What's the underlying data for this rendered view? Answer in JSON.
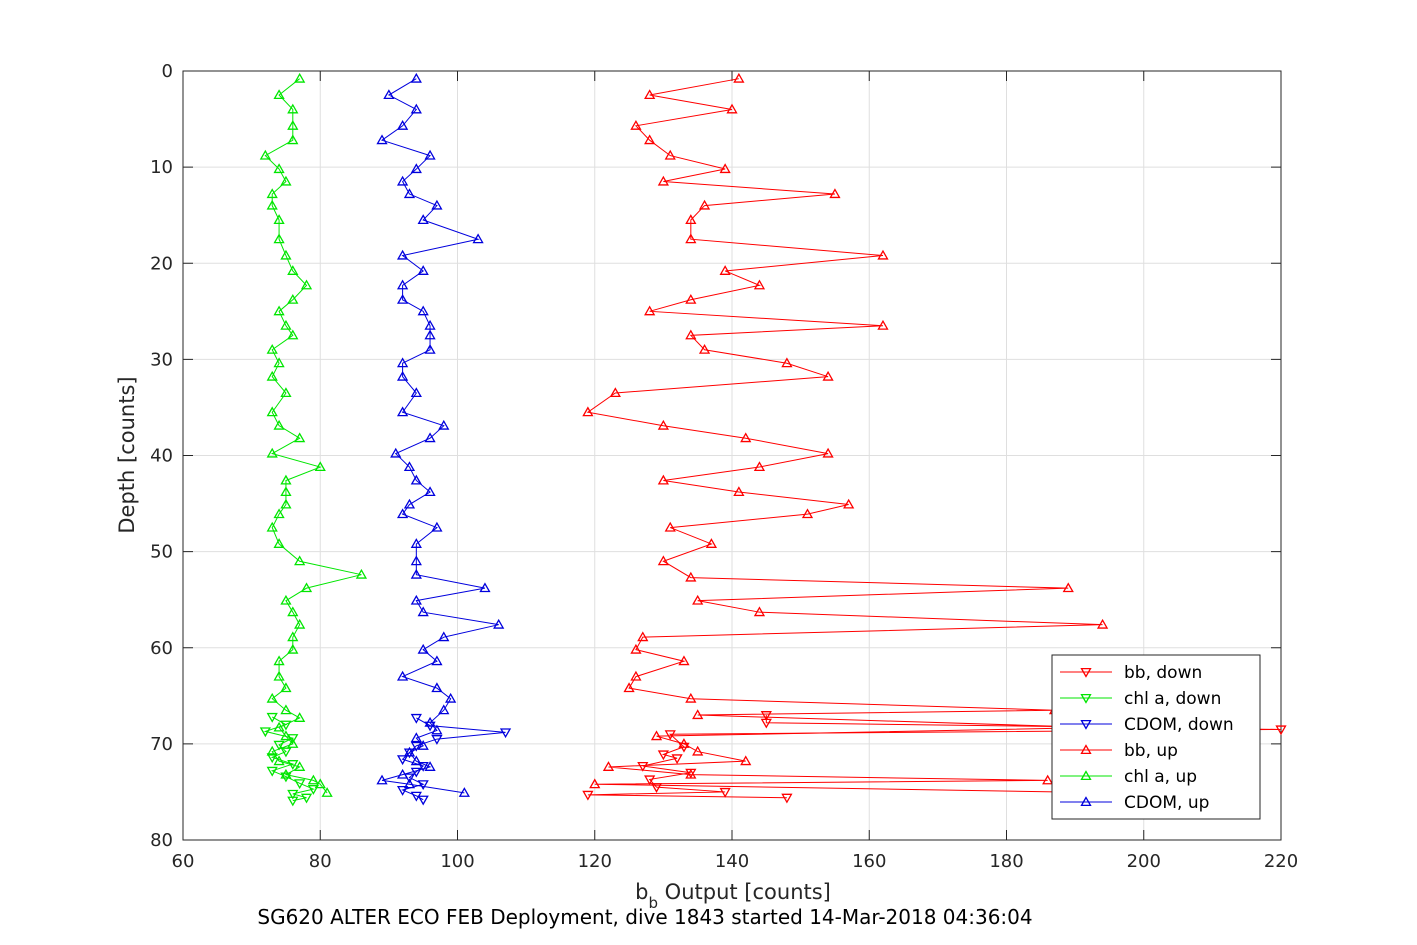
{
  "chart_data": {
    "type": "line",
    "xlabel_main": "b",
    "xlabel_sub": "b",
    "xlabel_rest": " Output [counts]",
    "ylabel": "Depth [counts]",
    "caption": "SG620 ALTER ECO FEB Deployment, dive 1843 started 14-Mar-2018 04:36:04",
    "xlim": [
      60,
      220
    ],
    "ylim": [
      0,
      80
    ],
    "y_reversed": true,
    "grid": true,
    "legend_position": "bottom-right",
    "xticks": [
      60,
      80,
      100,
      120,
      140,
      160,
      180,
      200,
      220
    ],
    "yticks": [
      0,
      10,
      20,
      30,
      40,
      50,
      60,
      70,
      80
    ],
    "series": [
      {
        "name": "bb, down",
        "color": "#ff0000",
        "marker": "triangle-down",
        "depth": [
          67.0,
          67.8,
          68.5,
          69.0,
          70.3,
          71.1,
          71.5,
          72.3,
          73.0,
          73.7,
          74.5,
          75.0,
          75.3,
          75.6
        ],
        "values": [
          145,
          145,
          220,
          131,
          133,
          130,
          132,
          127,
          134,
          128,
          129,
          139,
          119,
          148
        ]
      },
      {
        "name": "chl a, down",
        "color": "#00e600",
        "marker": "triangle-down",
        "depth": [
          67.2,
          68.0,
          68.7,
          69.4,
          70.1,
          70.8,
          71.4,
          72.1,
          72.8,
          73.4,
          74.1,
          74.7,
          75.2,
          75.6,
          75.9
        ],
        "values": [
          73,
          75,
          72,
          76,
          74,
          75,
          73,
          76,
          73,
          75,
          77,
          79,
          76,
          78,
          76
        ]
      },
      {
        "name": "CDOM, down",
        "color": "#0000dd",
        "marker": "triangle-down",
        "depth": [
          67.3,
          68.1,
          68.8,
          69.5,
          70.2,
          70.9,
          71.6,
          72.3,
          72.9,
          73.5,
          74.2,
          74.8,
          75.4,
          75.8
        ],
        "values": [
          94,
          96,
          107,
          97,
          94,
          93,
          92,
          95,
          94,
          93,
          95,
          92,
          94,
          95
        ]
      },
      {
        "name": "bb, up",
        "color": "#ff0000",
        "marker": "triangle-up",
        "depth": [
          0.8,
          2.5,
          4.0,
          5.7,
          7.2,
          8.8,
          10.2,
          11.5,
          12.8,
          14.0,
          15.5,
          17.5,
          19.2,
          20.8,
          22.3,
          23.8,
          25.0,
          26.5,
          27.5,
          29.0,
          30.4,
          31.8,
          33.5,
          35.5,
          36.9,
          38.2,
          39.8,
          41.2,
          42.6,
          43.8,
          45.1,
          46.1,
          47.5,
          49.2,
          51.0,
          52.7,
          53.8,
          55.1,
          56.3,
          57.6,
          58.9,
          60.2,
          61.4,
          63.0,
          64.2,
          65.3,
          66.5,
          67.0,
          68.3,
          69.2,
          70.0,
          70.8,
          71.8,
          72.4,
          73.2,
          73.8,
          74.2,
          75.1
        ],
        "values": [
          141,
          128,
          140,
          126,
          128,
          131,
          139,
          130,
          155,
          136,
          134,
          134,
          162,
          139,
          144,
          134,
          128,
          162,
          134,
          136,
          148,
          154,
          123,
          119,
          130,
          142,
          154,
          144,
          130,
          141,
          157,
          151,
          131,
          137,
          130,
          134,
          189,
          135,
          144,
          194,
          127,
          126,
          133,
          126,
          125,
          134,
          187,
          135,
          193,
          129,
          133,
          135,
          142,
          122,
          134,
          186,
          120,
          196
        ]
      },
      {
        "name": "chl a, up",
        "color": "#00e600",
        "marker": "triangle-up",
        "depth": [
          0.8,
          2.5,
          4.0,
          5.7,
          7.2,
          8.8,
          10.2,
          11.5,
          12.8,
          14.0,
          15.5,
          17.5,
          19.2,
          20.8,
          22.3,
          23.8,
          25.0,
          26.5,
          27.5,
          29.0,
          30.4,
          31.8,
          33.5,
          35.5,
          36.9,
          38.2,
          39.8,
          41.2,
          42.6,
          43.8,
          45.1,
          46.1,
          47.5,
          49.2,
          51.0,
          52.4,
          53.8,
          55.1,
          56.3,
          57.6,
          58.9,
          60.2,
          61.4,
          63.0,
          64.2,
          65.3,
          66.5,
          67.3,
          68.3,
          69.2,
          70.0,
          70.8,
          71.8,
          72.4,
          73.2,
          73.8,
          74.2,
          75.1
        ],
        "values": [
          77,
          74,
          76,
          76,
          76,
          72,
          74,
          75,
          73,
          73,
          74,
          74,
          75,
          76,
          78,
          76,
          74,
          75,
          76,
          73,
          74,
          73,
          75,
          73,
          74,
          77,
          73,
          80,
          75,
          75,
          75,
          74,
          73,
          74,
          77,
          86,
          78,
          75,
          76,
          77,
          76,
          76,
          74,
          74,
          75,
          73,
          75,
          77,
          74,
          75,
          76,
          73,
          74,
          77,
          75,
          79,
          80,
          81
        ]
      },
      {
        "name": "CDOM, up",
        "color": "#0000dd",
        "marker": "triangle-up",
        "depth": [
          0.8,
          2.5,
          4.0,
          5.7,
          7.2,
          8.8,
          10.2,
          11.5,
          12.8,
          14.0,
          15.5,
          17.5,
          19.2,
          20.8,
          22.3,
          23.8,
          25.0,
          26.5,
          27.5,
          29.0,
          30.4,
          31.8,
          33.5,
          35.5,
          36.9,
          38.2,
          39.8,
          41.2,
          42.6,
          43.8,
          45.1,
          46.1,
          47.5,
          49.2,
          51.0,
          52.4,
          53.8,
          55.1,
          56.3,
          57.6,
          58.9,
          60.2,
          61.4,
          63.0,
          64.2,
          65.3,
          66.5,
          67.8,
          68.6,
          69.4,
          70.2,
          70.9,
          71.8,
          72.4,
          73.2,
          73.8,
          74.2,
          75.1
        ],
        "values": [
          94,
          90,
          94,
          92,
          89,
          96,
          94,
          92,
          93,
          97,
          95,
          103,
          92,
          95,
          92,
          92,
          95,
          96,
          96,
          96,
          92,
          92,
          94,
          92,
          98,
          96,
          91,
          93,
          94,
          96,
          93,
          92,
          97,
          94,
          94,
          94,
          104,
          94,
          95,
          106,
          98,
          95,
          97,
          92,
          97,
          99,
          98,
          96,
          97,
          94,
          95,
          93,
          94,
          96,
          92,
          89,
          93,
          101
        ]
      }
    ]
  }
}
